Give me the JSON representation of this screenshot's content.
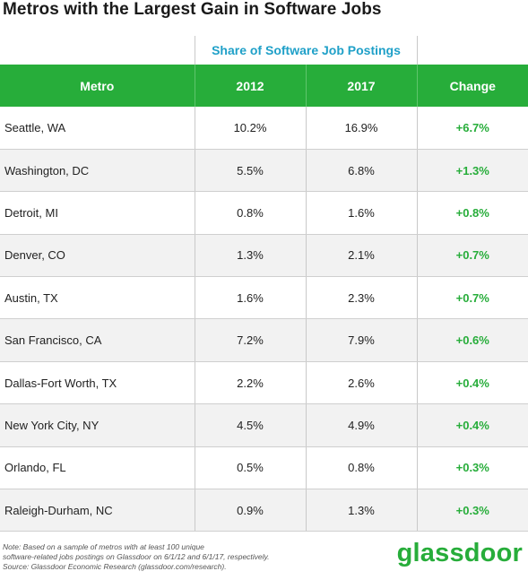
{
  "title": "Metros with the Largest Gain in Software Jobs",
  "super_header": "Share of Software Job Postings",
  "chart_data": {
    "type": "table",
    "title": "Metros with the Largest Gain in Software Jobs",
    "group_header": "Share of Software Job Postings",
    "columns": [
      "Metro",
      "2012",
      "2017",
      "Change"
    ],
    "rows": [
      [
        "Seattle, WA",
        "10.2%",
        "16.9%",
        "+6.7%"
      ],
      [
        "Washington, DC",
        "5.5%",
        "6.8%",
        "+1.3%"
      ],
      [
        "Detroit, MI",
        "0.8%",
        "1.6%",
        "+0.8%"
      ],
      [
        "Denver, CO",
        "1.3%",
        "2.1%",
        "+0.7%"
      ],
      [
        "Austin, TX",
        "1.6%",
        "2.3%",
        "+0.7%"
      ],
      [
        "San Francisco, CA",
        "7.2%",
        "7.9%",
        "+0.6%"
      ],
      [
        "Dallas-Fort Worth, TX",
        "2.2%",
        "2.6%",
        "+0.4%"
      ],
      [
        "New York City, NY",
        "4.5%",
        "4.9%",
        "+0.4%"
      ],
      [
        "Orlando, FL",
        "0.5%",
        "0.8%",
        "+0.3%"
      ],
      [
        "Raleigh-Durham, NC",
        "0.9%",
        "1.3%",
        "+0.3%"
      ]
    ]
  },
  "note_lines": [
    "Note: Based on a sample of metros with at least 100 unique",
    "software-related jobs postings on Glassdoor on 6/1/12 and 6/1/17, respectively.",
    "Source: Glassdoor Economic Research (glassdoor.com/research)."
  ],
  "logo_text": "glassdoor",
  "colors": {
    "header_green": "#27ad3a",
    "change_green": "#27ad3a",
    "super_header_blue": "#1fa0c8",
    "stripe_gray": "#f2f2f2"
  }
}
